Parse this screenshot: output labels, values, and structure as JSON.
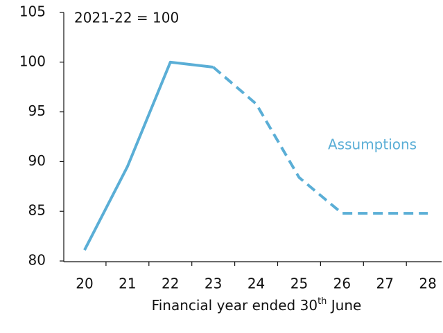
{
  "chart_data": {
    "type": "line",
    "annotation": "2021-22 = 100",
    "x_label": [
      "Financial year ended 30",
      "th",
      " June"
    ],
    "categories": [
      "20",
      "21",
      "22",
      "23",
      "24",
      "25",
      "26",
      "27",
      "28"
    ],
    "series": [
      {
        "color": "#5aaed6",
        "dash": false,
        "values": [
          81.1,
          89.5,
          100,
          99.5,
          null,
          null,
          null,
          null,
          null
        ]
      },
      {
        "name": "Assumptions",
        "color": "#5aaed6",
        "dash": true,
        "values": [
          null,
          null,
          null,
          99.5,
          95.8,
          88.4,
          84.8,
          84.8,
          84.8
        ]
      }
    ],
    "ylim": [
      80,
      105
    ],
    "yticks": [
      80,
      85,
      90,
      95,
      100,
      105
    ]
  }
}
